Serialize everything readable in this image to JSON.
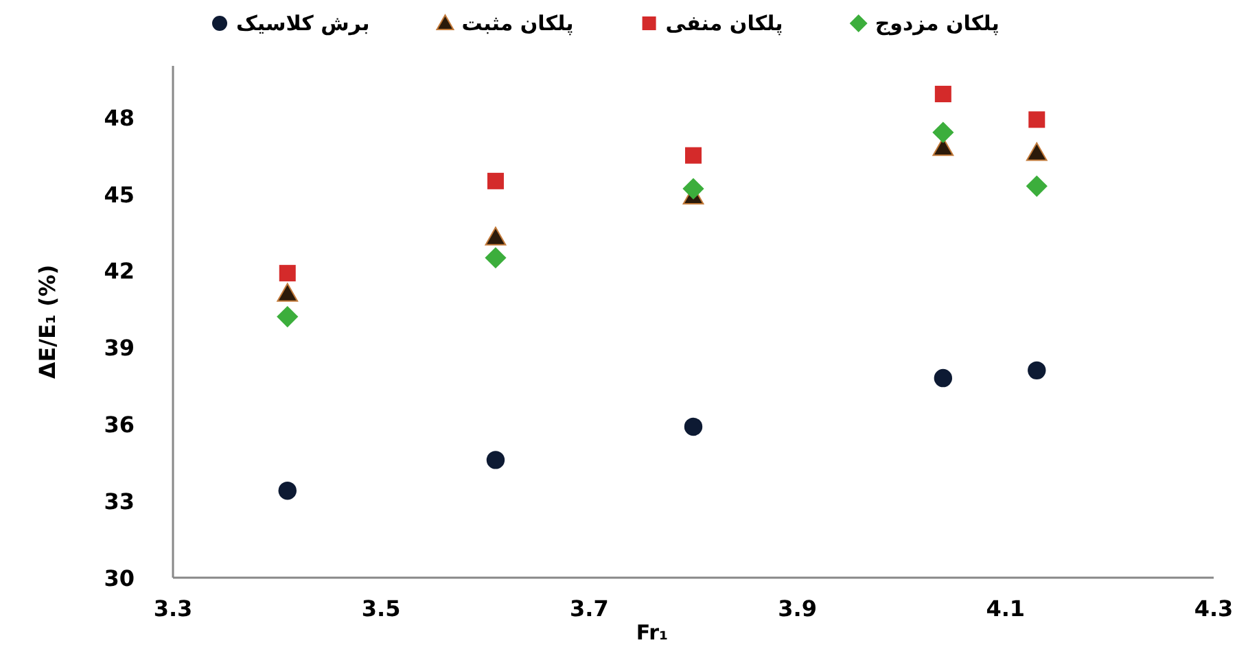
{
  "chart_data": {
    "type": "scatter",
    "xlabel": "Fr₁",
    "ylabel": "ΔE/E₁ (%)",
    "xlim": [
      3.3,
      4.3
    ],
    "xticks": [
      3.3,
      3.5,
      3.7,
      3.9,
      4.1,
      4.3
    ],
    "ylim": [
      30,
      50
    ],
    "yticks": [
      30,
      33,
      36,
      39,
      42,
      45,
      48
    ],
    "x": [
      3.41,
      3.61,
      3.8,
      4.04,
      4.13
    ],
    "grid": false,
    "legend": "top",
    "series": [
      {
        "name": "برش کلاسیک",
        "color": "#0d1a33",
        "marker": "circle",
        "values": [
          33.4,
          34.6,
          35.9,
          37.8,
          38.1
        ]
      },
      {
        "name": "پلکان مثبت",
        "color": "#2b1a0a",
        "marker": "triangle",
        "values": [
          41.1,
          43.3,
          44.9,
          46.8,
          46.6
        ]
      },
      {
        "name": "پلکان منفی",
        "color": "#d42a2a",
        "marker": "square",
        "values": [
          41.9,
          45.5,
          46.5,
          48.9,
          47.9
        ]
      },
      {
        "name": "پلکان مزدوج",
        "color": "#3cae3c",
        "marker": "diamond",
        "values": [
          40.2,
          42.5,
          45.2,
          47.4,
          45.3
        ]
      }
    ]
  }
}
